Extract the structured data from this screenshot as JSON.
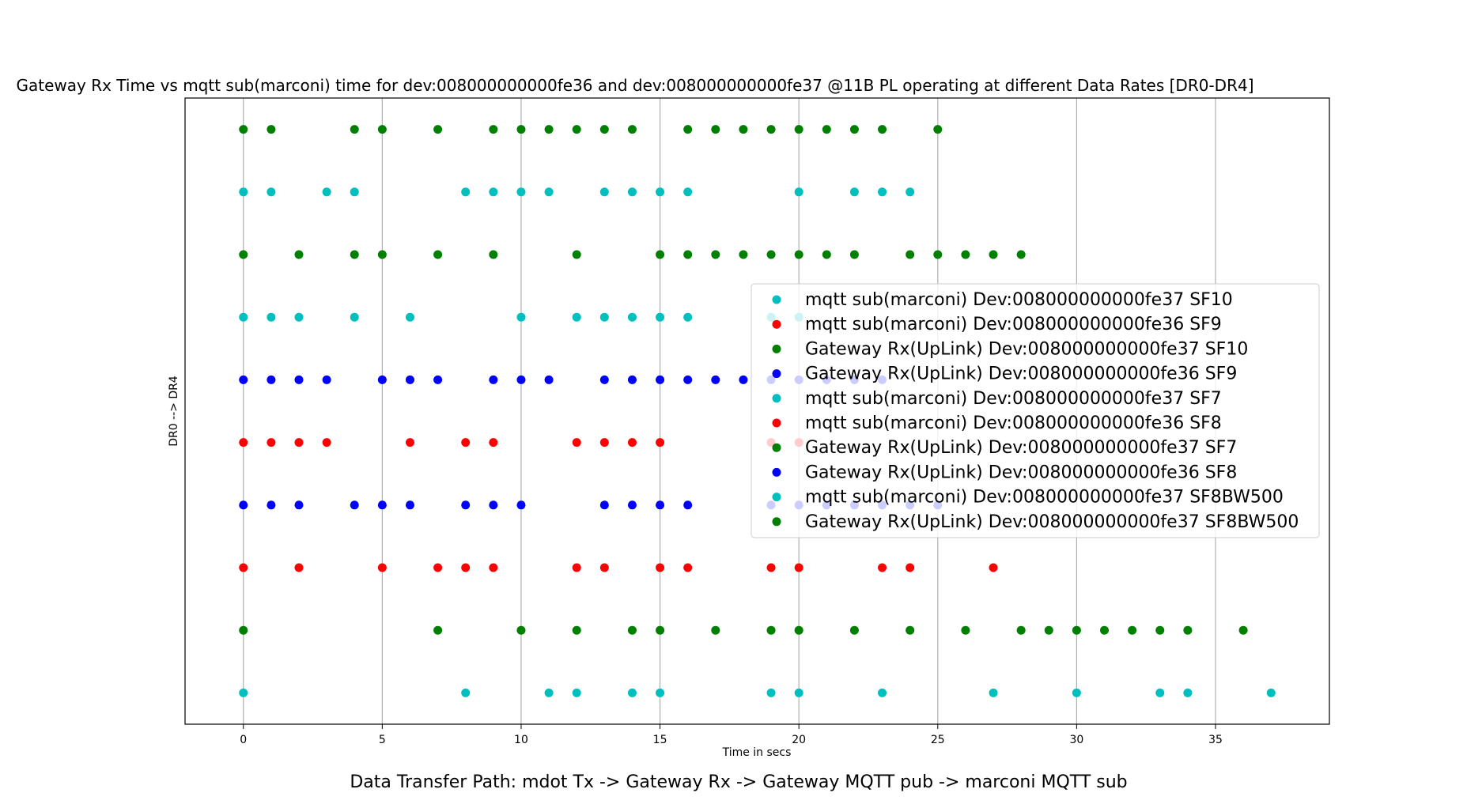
{
  "chart_data": {
    "type": "scatter",
    "title": "Gateway Rx Time vs mqtt sub(marconi) time for dev:008000000000fe36 and dev:008000000000fe37 @11B PL operating at different Data Rates [DR0-DR4]",
    "xlabel": "Time in secs",
    "ylabel": "DR0 --> DR4",
    "caption": "Data Transfer Path: mdot Tx -> Gateway Rx -> Gateway MQTT pub -> marconi MQTT sub",
    "xlim": [
      -2.1,
      39.1
    ],
    "ylim": [
      -0.5,
      9.5
    ],
    "x_ticks": [
      0,
      5,
      10,
      15,
      20,
      25,
      30,
      35
    ],
    "x_tick_labels": [
      "0",
      "5",
      "10",
      "15",
      "20",
      "25",
      "30",
      "35"
    ],
    "grid": "vertical",
    "legend_position": "right",
    "series": [
      {
        "name": "mqtt sub(marconi) Dev:008000000000fe37 SF10",
        "color": "#00bfbf",
        "y": 0,
        "x": [
          0,
          8,
          11,
          12,
          14,
          15,
          19,
          20,
          23,
          27,
          30,
          33,
          34,
          37
        ]
      },
      {
        "name": "mqtt sub(marconi) Dev:008000000000fe36 SF9",
        "color": "#ff0000",
        "y": 2,
        "x": [
          0,
          2,
          5,
          7,
          8,
          9,
          12,
          13,
          15,
          16,
          19,
          20,
          23,
          24,
          27
        ]
      },
      {
        "name": "Gateway Rx(UpLink) Dev:008000000000fe37 SF10",
        "color": "#008000",
        "y": 1,
        "x": [
          0,
          7,
          10,
          12,
          14,
          15,
          17,
          19,
          20,
          22,
          24,
          26,
          28,
          29,
          30,
          31,
          32,
          33,
          34,
          36
        ]
      },
      {
        "name": "Gateway Rx(UpLink) Dev:008000000000fe36 SF9",
        "color": "#0000ff",
        "y": 3,
        "x": [
          0,
          1,
          2,
          4,
          5,
          6,
          8,
          9,
          10,
          13,
          14,
          15,
          16,
          19,
          20,
          21,
          22,
          23,
          24,
          25
        ]
      },
      {
        "name": "mqtt sub(marconi) Dev:008000000000fe37 SF7",
        "color": "#00bfbf",
        "y": 6,
        "x": [
          0,
          1,
          2,
          4,
          6,
          10,
          12,
          13,
          14,
          15,
          16,
          19,
          20
        ]
      },
      {
        "name": "mqtt sub(marconi) Dev:008000000000fe36 SF8",
        "color": "#ff0000",
        "y": 4,
        "x": [
          0,
          1,
          2,
          3,
          6,
          8,
          9,
          12,
          13,
          14,
          15,
          19,
          20
        ]
      },
      {
        "name": "Gateway Rx(UpLink) Dev:008000000000fe37 SF7",
        "color": "#008000",
        "y": 7,
        "x": [
          0,
          2,
          4,
          5,
          7,
          9,
          12,
          15,
          16,
          17,
          18,
          19,
          20,
          21,
          22,
          24,
          25,
          26,
          27,
          28
        ]
      },
      {
        "name": "Gateway Rx(UpLink) Dev:008000000000fe36 SF8",
        "color": "#0000ff",
        "y": 5,
        "x": [
          0,
          1,
          2,
          3,
          5,
          6,
          7,
          9,
          10,
          11,
          13,
          14,
          15,
          16,
          17,
          18,
          19,
          20,
          21,
          22,
          23
        ]
      },
      {
        "name": "mqtt sub(marconi) Dev:008000000000fe37 SF8BW500",
        "color": "#00bfbf",
        "y": 8,
        "x": [
          0,
          1,
          3,
          4,
          8,
          9,
          10,
          11,
          13,
          14,
          15,
          16,
          20,
          22,
          23,
          24
        ]
      },
      {
        "name": "Gateway Rx(UpLink) Dev:008000000000fe37 SF8BW500",
        "color": "#008000",
        "y": 9,
        "x": [
          0,
          1,
          4,
          5,
          7,
          9,
          10,
          11,
          12,
          13,
          14,
          16,
          17,
          18,
          19,
          20,
          21,
          22,
          23,
          25
        ]
      }
    ]
  }
}
